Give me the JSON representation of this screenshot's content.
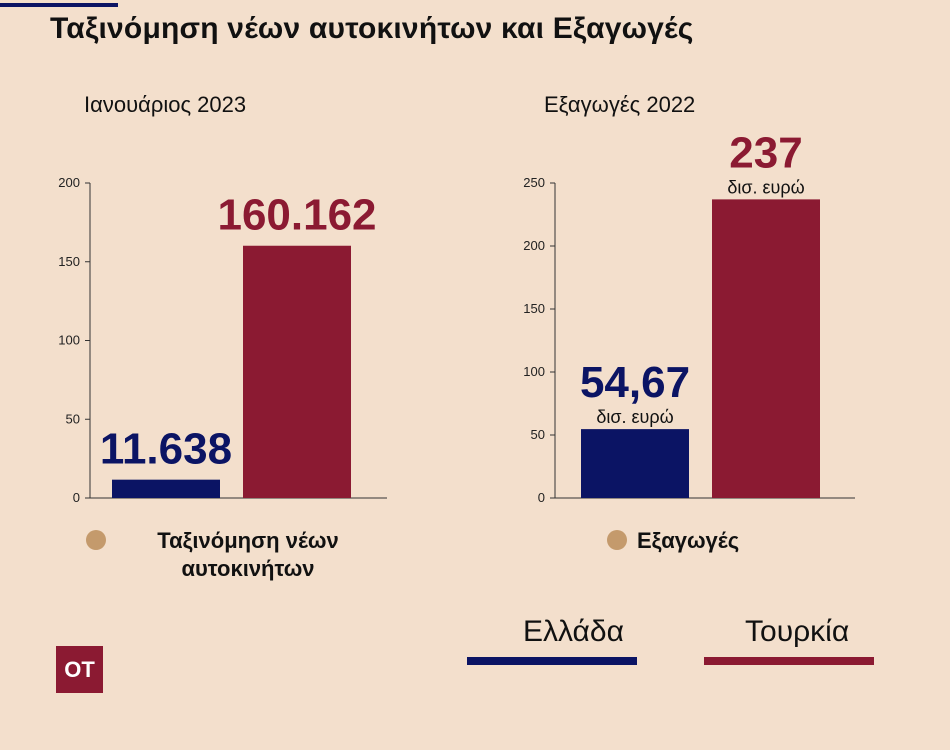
{
  "title": "Ταξινόμηση νέων αυτοκινήτων και Εξαγωγές",
  "colors": {
    "greece": "#0b1464",
    "turkey": "#8b1a32",
    "legend_dot": "#c49a6c",
    "background": "#f3dfcc"
  },
  "chart_data": [
    {
      "type": "bar",
      "subtitle": "Ιανουάριος 2023",
      "categories": [
        "Ελλάδα",
        "Τουρκία"
      ],
      "values": [
        11.638,
        160.162
      ],
      "data_labels": [
        "11.638",
        "160.162"
      ],
      "unit_labels": [
        "",
        ""
      ],
      "ylim": [
        0,
        200
      ],
      "yticks": [
        0,
        50,
        100,
        150,
        200
      ],
      "legend": "Ταξινόμηση νέων αυτοκινήτων"
    },
    {
      "type": "bar",
      "subtitle": "Εξαγωγές 2022",
      "categories": [
        "Ελλάδα",
        "Τουρκία"
      ],
      "values": [
        54.67,
        237
      ],
      "data_labels": [
        "54,67",
        "237"
      ],
      "unit_labels": [
        "δισ. ευρώ",
        "δισ. ευρώ"
      ],
      "ylim": [
        0,
        250
      ],
      "yticks": [
        0,
        50,
        100,
        150,
        200,
        250
      ],
      "legend": "Εξαγωγές"
    }
  ],
  "legend_countries": [
    {
      "label": "Ελλάδα",
      "color": "#0b1464"
    },
    {
      "label": "Τουρκία",
      "color": "#8b1a32"
    }
  ],
  "logo_text": "OT"
}
